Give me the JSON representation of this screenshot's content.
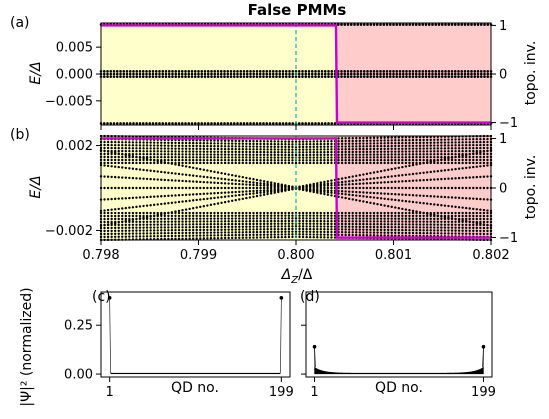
{
  "title": "False PMMs",
  "chart_data": [
    {
      "panel": "(a)",
      "type": "scatter",
      "ylabel": "E/Δ",
      "y2label": "topo. inv.",
      "xlim": [
        0.798,
        0.802
      ],
      "ylim": [
        -0.0095,
        0.0095
      ],
      "y2lim": [
        -1.05,
        1.05
      ],
      "yticks": [
        0.005,
        0.0,
        -0.005
      ],
      "ytick_labels": [
        "0.005",
        "0.000",
        "−0.005"
      ],
      "y2ticks": [
        1,
        0,
        -1
      ],
      "y2tick_labels": [
        "1",
        "0",
        "−1"
      ],
      "vline_x": 0.8,
      "transition_x": 0.80041,
      "topo_left": 1,
      "topo_right": -1,
      "levels": [
        0.0092,
        0.0005,
        0.0,
        -0.0005,
        -0.0092
      ],
      "colors": {
        "trivial": "#ffffcc",
        "topological": "#ffcccc",
        "topo_line": "#cc00cc",
        "vline": "#22aaaa",
        "points": "#000000"
      }
    },
    {
      "panel": "(b)",
      "type": "scatter",
      "ylabel": "E/Δ",
      "y2label": "topo. inv.",
      "xlabel": "Δ_Z/Δ",
      "xlim": [
        0.798,
        0.802
      ],
      "xticks": [
        0.798,
        0.799,
        0.8,
        0.801,
        0.802
      ],
      "xtick_labels": [
        "0.798",
        "0.799",
        "0.800",
        "0.801",
        "0.802"
      ],
      "ylim": [
        -0.00245,
        0.00245
      ],
      "yticks": [
        0.002,
        -0.002
      ],
      "ytick_labels": [
        "0.002",
        "−0.002"
      ],
      "y2lim": [
        -1.05,
        1.05
      ],
      "y2ticks": [
        1,
        0,
        -1
      ],
      "y2tick_labels": [
        "1",
        "0",
        "−1"
      ],
      "vline_x": 0.8,
      "transition_x": 0.80041,
      "crossing_x": 0.8,
      "topo_left": 1,
      "topo_right": -1
    },
    {
      "panel": "(c)",
      "type": "line",
      "ylabel": "|Ψ|² (normalized)",
      "xlabel": "QD no.",
      "xticks": [
        1,
        199
      ],
      "xtick_labels": [
        "1",
        "199"
      ],
      "xlim": [
        -9,
        209
      ],
      "ylim": [
        -0.015,
        0.42
      ],
      "yticks": [
        0.0,
        0.25
      ],
      "ytick_labels": [
        "0.00",
        "0.25"
      ],
      "n": 199,
      "edge_value": 0.39,
      "bulk_value": 0.003
    },
    {
      "panel": "(d)",
      "type": "line",
      "xlabel": "QD no.",
      "xticks": [
        1,
        199
      ],
      "xtick_labels": [
        "1",
        "199"
      ],
      "xlim": [
        -9,
        209
      ],
      "ylim": [
        -0.015,
        0.42
      ],
      "n": 199,
      "edge_value": 0.14,
      "bulk_min": 0.006
    }
  ]
}
